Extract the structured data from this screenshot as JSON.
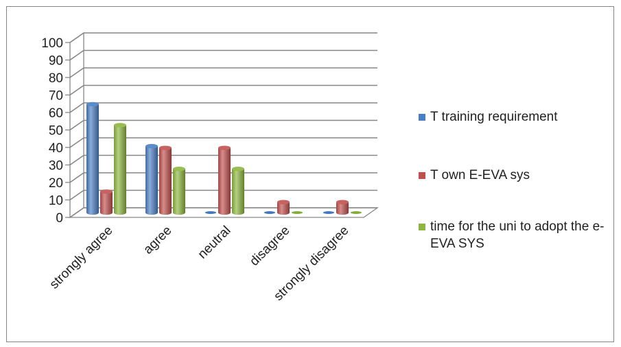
{
  "chart_data": {
    "type": "bar",
    "style": "3d-clustered-cylinder",
    "categories": [
      "strongly agree",
      "agree",
      "neutral",
      "disagree",
      "strongly disagree"
    ],
    "series": [
      {
        "name": "T training requirement",
        "color": "#4a7ec4",
        "values": [
          62,
          38,
          0,
          0,
          0
        ]
      },
      {
        "name": "T own E-EVA sys",
        "color": "#c0504d",
        "values": [
          12,
          37,
          37,
          6,
          6
        ]
      },
      {
        "name": "time for the uni to adopt the e-EVA SYS",
        "color": "#8db63f",
        "values": [
          50,
          25,
          25,
          0,
          0
        ]
      }
    ],
    "ylim": [
      0,
      100
    ],
    "yticks": [
      0,
      10,
      20,
      30,
      40,
      50,
      60,
      70,
      80,
      90,
      100
    ],
    "grid": true,
    "legend_position": "right"
  }
}
